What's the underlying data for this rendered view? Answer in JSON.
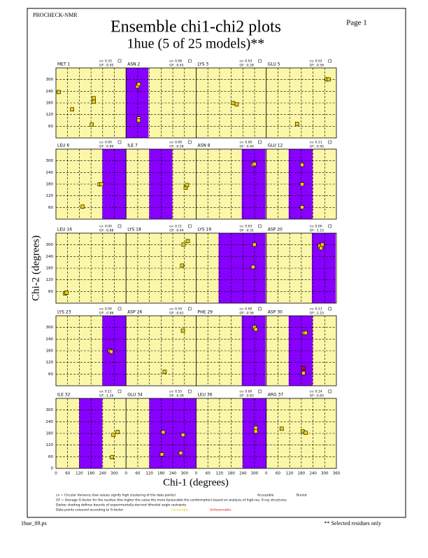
{
  "header": {
    "program": "PROCHECK-NMR",
    "title": "Ensemble chi1-chi2 plots",
    "subtitle": "1hue (5 of 25 models)**",
    "page": "Page  1"
  },
  "axes": {
    "xlabel": "Chi-1 (degrees)",
    "ylabel": "Chi-2 (degrees)",
    "xlim": [
      0,
      360
    ],
    "ylim": [
      0,
      360
    ],
    "xticks": [
      0,
      60,
      120,
      180,
      240,
      300,
      360
    ],
    "yticks": [
      0,
      60,
      120,
      180,
      240,
      300
    ]
  },
  "panels": [
    {
      "residue": "MET 1",
      "cv": "cv: 0.33",
      "gf": "GF: -0.95",
      "chi1": [
        14,
        83,
        194,
        194,
        184
      ],
      "chi2": [
        236,
        147,
        204,
        186,
        68
      ]
    },
    {
      "residue": "ASN 2",
      "cv": "cv: 0.08",
      "gf": "GF: -0.45",
      "restraint": [
        0,
        115
      ],
      "chi1": [
        58,
        65,
        65,
        65
      ],
      "chi2": [
        265,
        276,
        100,
        90
      ]
    },
    {
      "residue": "LYS 3",
      "cv": "cv: 0.03",
      "gf": "GF: -0.28",
      "chi1": [
        190,
        208
      ],
      "chi2": [
        179,
        172
      ]
    },
    {
      "residue": "GLU 5",
      "cv": "cv: 0.03",
      "gf": "GF: -0.56",
      "chi1": [
        158,
        310,
        320
      ],
      "chi2": [
        72,
        301,
        301
      ]
    },
    {
      "residue": "LEU 6",
      "cv": "cv: 0.00",
      "gf": "GF: -0.89",
      "restraint": [
        238,
        360
      ],
      "chi1": [
        224,
        234,
        137
      ],
      "chi2": [
        179,
        179,
        64
      ]
    },
    {
      "residue": "ILE 7",
      "cv": "cv: 0.00",
      "gf": "GF: -0.58",
      "restraint": [
        119,
        238
      ],
      "chi1": [
        306,
        313
      ],
      "chi2": [
        161,
        175
      ]
    },
    {
      "residue": "ASN 8",
      "cv": "cv: 0.00",
      "gf": "GF: -0.40",
      "restraint": [
        234,
        356
      ],
      "chi1": [
        292,
        299
      ],
      "chi2": [
        279,
        283
      ]
    },
    {
      "residue": "GLU 12",
      "cv": "cv: 0.11",
      "gf": "GF: -0.95",
      "restraint": [
        115,
        238
      ],
      "chi1": [
        184,
        184,
        184
      ],
      "chi2": [
        61,
        179,
        279
      ]
    },
    {
      "residue": "LEU 16",
      "cv": "cv: 0.00",
      "gf": "GF: -0.88",
      "chi1": [
        47,
        54
      ],
      "chi2": [
        50,
        54
      ]
    },
    {
      "residue": "LYS 18",
      "cv": "cv: 0.11",
      "gf": "GF: -0.44",
      "chi1": [
        288,
        295,
        317
      ],
      "chi2": [
        193,
        301,
        319
      ]
    },
    {
      "residue": "LYS 19",
      "cv": "cv: 0.03",
      "gf": "GF: -0.31",
      "restraint": [
        115,
        356
      ],
      "chi1": [
        299,
        292
      ],
      "chi2": [
        301,
        186
      ]
    },
    {
      "residue": "ASP 20",
      "cv": "cv: 0.00",
      "gf": "GF: -1.15",
      "restraint": [
        234,
        356
      ],
      "chi1": [
        274,
        281,
        288
      ],
      "chi2": [
        294,
        283,
        301
      ]
    },
    {
      "residue": "LYS 23",
      "cv": "cv: 0.00",
      "gf": "GF: -0.86",
      "restraint": [
        238,
        360
      ],
      "chi1": [
        277,
        284
      ],
      "chi2": [
        179,
        175
      ]
    },
    {
      "residue": "ASP 26",
      "cv": "cv: 0.54",
      "gf": "GF: -0.61",
      "chi1": [
        198,
        292
      ],
      "chi2": [
        72,
        283
      ]
    },
    {
      "residue": "PHE 29",
      "cv": "cv: 0.00",
      "gf": "GF: -0.56",
      "restraint": [
        234,
        356
      ],
      "chi1": [
        299,
        306
      ],
      "chi2": [
        301,
        290
      ]
    },
    {
      "residue": "ASP 30",
      "cv": "cv: 0.11",
      "gf": "GF: -1.15",
      "restraint": [
        115,
        238
      ],
      "chi1": [
        194,
        202,
        191,
        191
      ],
      "chi2": [
        272,
        272,
        90,
        65
      ]
    },
    {
      "residue": "ILE 32",
      "cv": "cv: 0.11",
      "gf": "GF: -1.26",
      "restraint": [
        119,
        238
      ],
      "chi1": [
        317,
        295,
        288
      ],
      "chi2": [
        187,
        172,
        57
      ]
    },
    {
      "residue": "GLU 34",
      "cv": "cv: 0.55",
      "gf": "GF: -0.39",
      "restraint": [
        119,
        360
      ],
      "chi1": [
        191,
        184,
        281,
        292
      ],
      "chi2": [
        186,
        72,
        79,
        172
      ]
    },
    {
      "residue": "LEU 36",
      "cv": "cv: 0.00",
      "gf": "GF: -0.83",
      "restraint": [
        238,
        360
      ],
      "chi1": [
        306,
        306
      ],
      "chi2": [
        208,
        190
      ]
    },
    {
      "residue": "ARG 37",
      "cv": "cv: 0.14",
      "gf": "GF: -0.65",
      "chi1": [
        79,
        187,
        202
      ],
      "chi2": [
        204,
        190,
        183
      ]
    }
  ],
  "legend": {
    "cv": "cv = Circular Variance (low values signify high clustering of the data points)",
    "accessible": "Accessible",
    "buried": "Buried",
    "gf": "GF = Average G-factor for the residue (the higher the value the more favourable the conformation) based on analysis of high-res. X-ray structures",
    "shading": "Darker shading defines bounds of experimentally-derived dihedral angle restraints",
    "points": "Data points coloured according to G-factor:",
    "favourable": "Favourable",
    "unfavourable": "Unfavourable"
  },
  "footer": {
    "file": "1hue_09.ps",
    "note": "** Selected residues only"
  }
}
